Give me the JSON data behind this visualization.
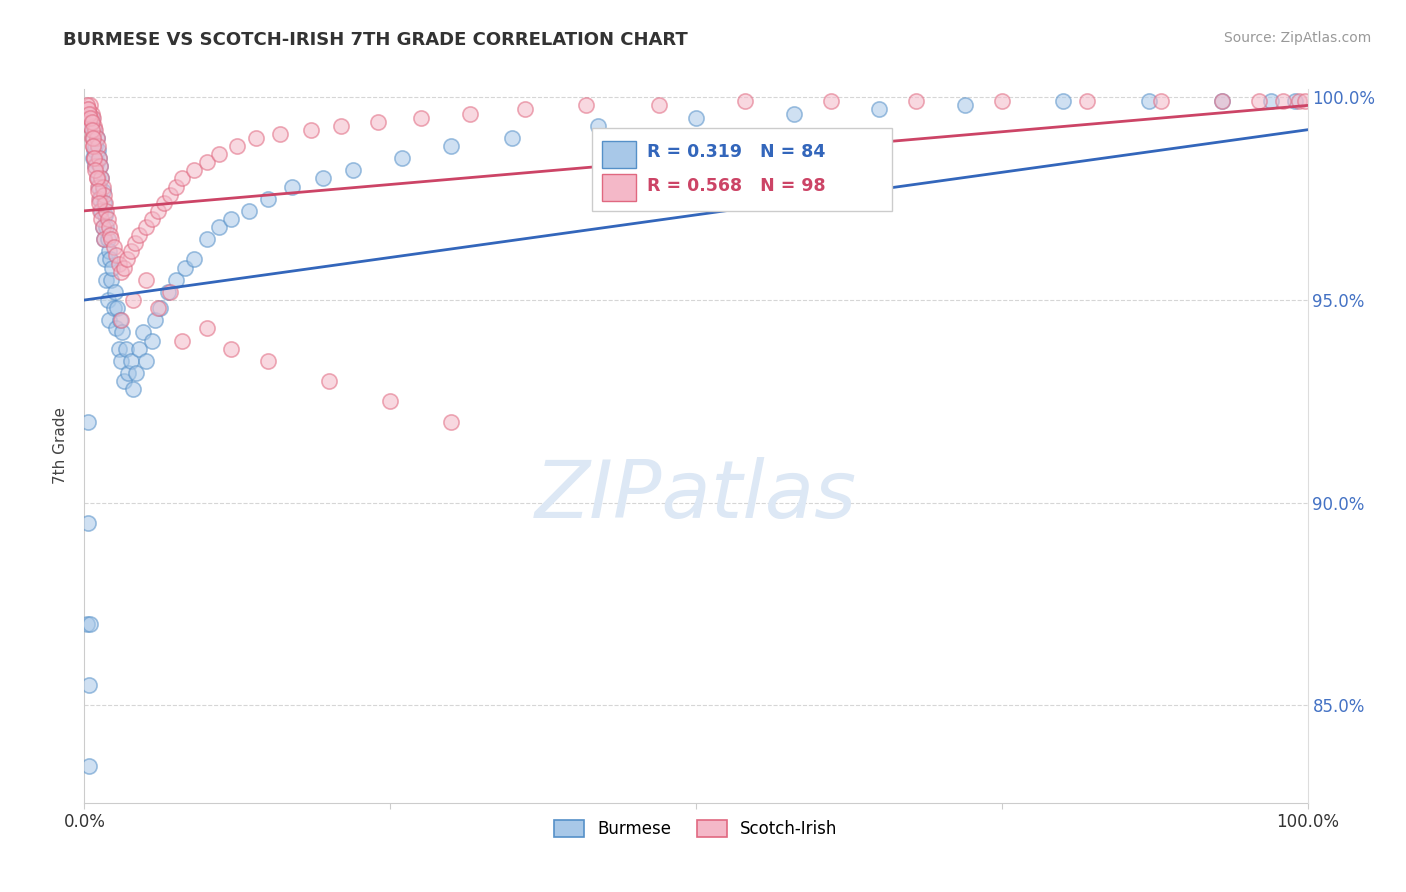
{
  "title": "BURMESE VS SCOTCH-IRISH 7TH GRADE CORRELATION CHART",
  "source_text": "Source: ZipAtlas.com",
  "ylabel": "7th Grade",
  "legend_burmese": "Burmese",
  "legend_scotch": "Scotch-Irish",
  "r_burmese": 0.319,
  "n_burmese": 84,
  "r_scotch": 0.568,
  "n_scotch": 98,
  "blue_fill": "#a8c8e8",
  "blue_edge": "#5590c8",
  "pink_fill": "#f4b8c8",
  "pink_edge": "#e06880",
  "blue_line_color": "#3366bb",
  "pink_line_color": "#cc4466",
  "watermark_color": "#dde8f5",
  "title_color": "#333333",
  "source_color": "#999999",
  "tick_label_color": "#4472c4",
  "background_color": "#ffffff",
  "ylim_low": 0.826,
  "ylim_high": 1.002,
  "xlim_low": 0.0,
  "xlim_high": 1.0,
  "blue_trend_x0": 0.0,
  "blue_trend_y0": 0.95,
  "blue_trend_x1": 1.0,
  "blue_trend_y1": 0.992,
  "pink_trend_x0": 0.0,
  "pink_trend_y0": 0.972,
  "pink_trend_x1": 1.0,
  "pink_trend_y1": 0.998,
  "dot_size": 120,
  "dot_alpha": 0.55,
  "burmese_x": [
    0.005,
    0.006,
    0.007,
    0.007,
    0.008,
    0.008,
    0.009,
    0.009,
    0.01,
    0.01,
    0.011,
    0.011,
    0.012,
    0.012,
    0.013,
    0.013,
    0.014,
    0.014,
    0.015,
    0.015,
    0.016,
    0.016,
    0.017,
    0.017,
    0.018,
    0.018,
    0.019,
    0.019,
    0.02,
    0.02,
    0.021,
    0.022,
    0.023,
    0.024,
    0.025,
    0.026,
    0.027,
    0.028,
    0.029,
    0.03,
    0.031,
    0.032,
    0.034,
    0.036,
    0.038,
    0.04,
    0.042,
    0.045,
    0.048,
    0.05,
    0.055,
    0.058,
    0.062,
    0.068,
    0.075,
    0.082,
    0.09,
    0.1,
    0.11,
    0.12,
    0.135,
    0.15,
    0.17,
    0.195,
    0.22,
    0.26,
    0.3,
    0.35,
    0.42,
    0.5,
    0.58,
    0.65,
    0.72,
    0.8,
    0.87,
    0.93,
    0.97,
    0.99,
    0.002,
    0.003,
    0.003,
    0.004,
    0.004,
    0.005
  ],
  "burmese_y": [
    0.993,
    0.995,
    0.99,
    0.985,
    0.992,
    0.987,
    0.988,
    0.983,
    0.99,
    0.984,
    0.987,
    0.98,
    0.985,
    0.978,
    0.983,
    0.975,
    0.98,
    0.972,
    0.977,
    0.968,
    0.974,
    0.965,
    0.971,
    0.96,
    0.968,
    0.955,
    0.965,
    0.95,
    0.962,
    0.945,
    0.96,
    0.955,
    0.958,
    0.948,
    0.952,
    0.943,
    0.948,
    0.938,
    0.945,
    0.935,
    0.942,
    0.93,
    0.938,
    0.932,
    0.935,
    0.928,
    0.932,
    0.938,
    0.942,
    0.935,
    0.94,
    0.945,
    0.948,
    0.952,
    0.955,
    0.958,
    0.96,
    0.965,
    0.968,
    0.97,
    0.972,
    0.975,
    0.978,
    0.98,
    0.982,
    0.985,
    0.988,
    0.99,
    0.993,
    0.995,
    0.996,
    0.997,
    0.998,
    0.999,
    0.999,
    0.999,
    0.999,
    0.999,
    0.87,
    0.895,
    0.92,
    0.855,
    0.835,
    0.87
  ],
  "scotch_x": [
    0.003,
    0.004,
    0.005,
    0.005,
    0.006,
    0.006,
    0.007,
    0.007,
    0.008,
    0.008,
    0.009,
    0.009,
    0.01,
    0.01,
    0.011,
    0.011,
    0.012,
    0.012,
    0.013,
    0.013,
    0.014,
    0.014,
    0.015,
    0.015,
    0.016,
    0.016,
    0.017,
    0.018,
    0.019,
    0.02,
    0.021,
    0.022,
    0.024,
    0.026,
    0.028,
    0.03,
    0.032,
    0.035,
    0.038,
    0.041,
    0.045,
    0.05,
    0.055,
    0.06,
    0.065,
    0.07,
    0.075,
    0.08,
    0.09,
    0.1,
    0.11,
    0.125,
    0.14,
    0.16,
    0.185,
    0.21,
    0.24,
    0.275,
    0.315,
    0.36,
    0.41,
    0.47,
    0.54,
    0.61,
    0.68,
    0.75,
    0.82,
    0.88,
    0.93,
    0.96,
    0.98,
    0.993,
    0.998,
    0.03,
    0.04,
    0.05,
    0.06,
    0.07,
    0.08,
    0.1,
    0.12,
    0.15,
    0.2,
    0.25,
    0.3,
    0.002,
    0.003,
    0.004,
    0.005,
    0.006,
    0.006,
    0.007,
    0.007,
    0.008,
    0.009,
    0.01,
    0.011,
    0.012
  ],
  "scotch_y": [
    0.997,
    0.995,
    0.998,
    0.993,
    0.996,
    0.99,
    0.995,
    0.988,
    0.993,
    0.985,
    0.992,
    0.983,
    0.99,
    0.98,
    0.988,
    0.978,
    0.985,
    0.975,
    0.983,
    0.972,
    0.98,
    0.97,
    0.978,
    0.968,
    0.976,
    0.965,
    0.974,
    0.972,
    0.97,
    0.968,
    0.966,
    0.965,
    0.963,
    0.961,
    0.959,
    0.957,
    0.958,
    0.96,
    0.962,
    0.964,
    0.966,
    0.968,
    0.97,
    0.972,
    0.974,
    0.976,
    0.978,
    0.98,
    0.982,
    0.984,
    0.986,
    0.988,
    0.99,
    0.991,
    0.992,
    0.993,
    0.994,
    0.995,
    0.996,
    0.997,
    0.998,
    0.998,
    0.999,
    0.999,
    0.999,
    0.999,
    0.999,
    0.999,
    0.999,
    0.999,
    0.999,
    0.999,
    0.999,
    0.945,
    0.95,
    0.955,
    0.948,
    0.952,
    0.94,
    0.943,
    0.938,
    0.935,
    0.93,
    0.925,
    0.92,
    0.998,
    0.997,
    0.996,
    0.995,
    0.994,
    0.992,
    0.99,
    0.988,
    0.985,
    0.982,
    0.98,
    0.977,
    0.974
  ]
}
